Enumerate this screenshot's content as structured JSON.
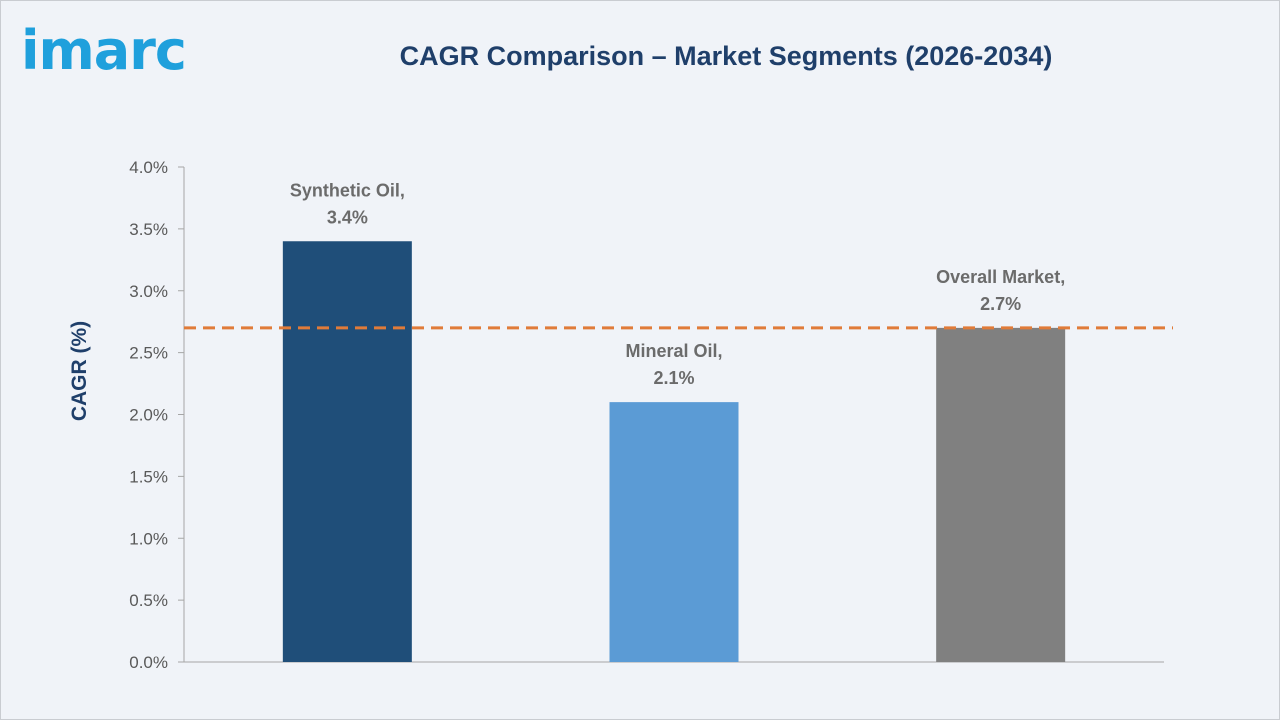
{
  "brand": {
    "logo_text": "imarc",
    "logo_color": "#1fa0dc"
  },
  "chart_data": {
    "type": "bar",
    "title": "CAGR Comparison – Market Segments (2026-2034)",
    "xlabel": "",
    "ylabel": "CAGR (%)",
    "categories": [
      "Synthetic Oil",
      "Mineral Oil",
      "Overall Market"
    ],
    "values": [
      3.4,
      2.1,
      2.7
    ],
    "data_labels": [
      [
        "Synthetic Oil,",
        "3.4%"
      ],
      [
        "Mineral Oil,",
        "2.1%"
      ],
      [
        "Overall Market,",
        "2.7%"
      ]
    ],
    "bar_colors": [
      "#1f4e79",
      "#5b9bd5",
      "#808080"
    ],
    "reference_line": {
      "value": 2.7,
      "style": "dashed",
      "color": "#e07b39"
    },
    "ylim": [
      0,
      4.0
    ],
    "yticks": [
      "0.0%",
      "0.5%",
      "1.0%",
      "1.5%",
      "2.0%",
      "2.5%",
      "3.0%",
      "3.5%",
      "4.0%"
    ],
    "grid": false,
    "legend": "none"
  }
}
